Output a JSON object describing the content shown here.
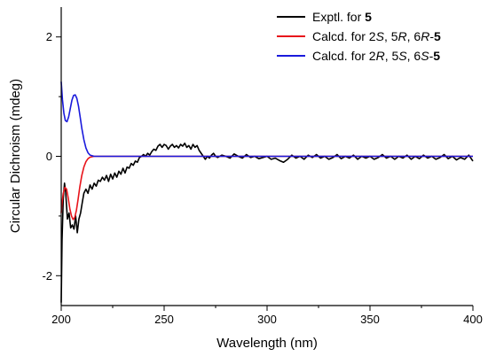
{
  "chart_data": {
    "type": "line",
    "xlabel": "Wavelength (nm)",
    "ylabel": "Circular Dichroism (mdeg)",
    "xlim": [
      200,
      400
    ],
    "ylim": [
      -2.5,
      2.5
    ],
    "xticks": [
      200,
      250,
      300,
      350,
      400
    ],
    "yticks": [
      -2,
      0,
      2
    ],
    "grid": false,
    "legend": "top-right",
    "series": [
      {
        "name": "Exptl. for 5",
        "legend": {
          "prefix": "Exptl. for ",
          "compound": "5"
        },
        "color": "#000000",
        "points": [
          [
            200,
            -2.45
          ],
          [
            200.4,
            -1.4
          ],
          [
            201,
            -0.7
          ],
          [
            201.6,
            -0.45
          ],
          [
            202.2,
            -0.62
          ],
          [
            203,
            -1.05
          ],
          [
            203.8,
            -0.95
          ],
          [
            204.6,
            -1.2
          ],
          [
            205.4,
            -1.15
          ],
          [
            206.2,
            -1.22
          ],
          [
            207,
            -1.0
          ],
          [
            207.8,
            -1.28
          ],
          [
            208.6,
            -1.05
          ],
          [
            209.4,
            -0.95
          ],
          [
            210.2,
            -0.78
          ],
          [
            211,
            -0.62
          ],
          [
            212,
            -0.55
          ],
          [
            213,
            -0.62
          ],
          [
            214,
            -0.48
          ],
          [
            215,
            -0.55
          ],
          [
            216,
            -0.45
          ],
          [
            217,
            -0.5
          ],
          [
            218,
            -0.4
          ],
          [
            219,
            -0.42
          ],
          [
            220,
            -0.35
          ],
          [
            221,
            -0.4
          ],
          [
            222,
            -0.32
          ],
          [
            223,
            -0.42
          ],
          [
            224,
            -0.3
          ],
          [
            225,
            -0.38
          ],
          [
            226,
            -0.28
          ],
          [
            227,
            -0.35
          ],
          [
            228,
            -0.25
          ],
          [
            229,
            -0.3
          ],
          [
            230,
            -0.2
          ],
          [
            231,
            -0.28
          ],
          [
            232,
            -0.18
          ],
          [
            233,
            -0.2
          ],
          [
            234,
            -0.12
          ],
          [
            235,
            -0.15
          ],
          [
            236,
            -0.08
          ],
          [
            237,
            -0.1
          ],
          [
            238,
            -0.02
          ],
          [
            239,
            0.0
          ],
          [
            240,
            0.03
          ],
          [
            241,
            0.0
          ],
          [
            242,
            0.05
          ],
          [
            243,
            0.02
          ],
          [
            244,
            0.08
          ],
          [
            245,
            0.12
          ],
          [
            246,
            0.1
          ],
          [
            247,
            0.17
          ],
          [
            248,
            0.2
          ],
          [
            249,
            0.15
          ],
          [
            250,
            0.2
          ],
          [
            251,
            0.18
          ],
          [
            252,
            0.12
          ],
          [
            253,
            0.17
          ],
          [
            254,
            0.2
          ],
          [
            255,
            0.15
          ],
          [
            256,
            0.18
          ],
          [
            257,
            0.14
          ],
          [
            258,
            0.2
          ],
          [
            259,
            0.17
          ],
          [
            260,
            0.22
          ],
          [
            261,
            0.15
          ],
          [
            262,
            0.18
          ],
          [
            263,
            0.12
          ],
          [
            264,
            0.2
          ],
          [
            265,
            0.15
          ],
          [
            266,
            0.18
          ],
          [
            267,
            0.1
          ],
          [
            268,
            0.05
          ],
          [
            269,
            0.0
          ],
          [
            270,
            -0.05
          ],
          [
            271,
            0.0
          ],
          [
            272,
            -0.03
          ],
          [
            273,
            0.02
          ],
          [
            274,
            0.05
          ],
          [
            275,
            0.0
          ],
          [
            276,
            -0.02
          ],
          [
            278,
            0.02
          ],
          [
            280,
            0.0
          ],
          [
            282,
            -0.03
          ],
          [
            284,
            0.04
          ],
          [
            286,
            0.0
          ],
          [
            288,
            -0.03
          ],
          [
            290,
            0.03
          ],
          [
            292,
            -0.02
          ],
          [
            294,
            0.0
          ],
          [
            296,
            -0.04
          ],
          [
            298,
            -0.02
          ],
          [
            300,
            0.0
          ],
          [
            302,
            -0.05
          ],
          [
            304,
            -0.03
          ],
          [
            306,
            -0.07
          ],
          [
            308,
            -0.1
          ],
          [
            310,
            -0.05
          ],
          [
            312,
            0.02
          ],
          [
            314,
            -0.03
          ],
          [
            316,
            0.0
          ],
          [
            318,
            -0.05
          ],
          [
            320,
            0.02
          ],
          [
            322,
            -0.02
          ],
          [
            324,
            0.03
          ],
          [
            326,
            -0.03
          ],
          [
            328,
            0.0
          ],
          [
            330,
            -0.05
          ],
          [
            332,
            -0.02
          ],
          [
            334,
            0.03
          ],
          [
            336,
            -0.04
          ],
          [
            338,
            0.0
          ],
          [
            340,
            -0.03
          ],
          [
            342,
            0.02
          ],
          [
            344,
            -0.05
          ],
          [
            346,
            0.0
          ],
          [
            348,
            -0.03
          ],
          [
            350,
            0.0
          ],
          [
            352,
            -0.05
          ],
          [
            354,
            -0.02
          ],
          [
            356,
            0.03
          ],
          [
            358,
            -0.03
          ],
          [
            360,
            0.0
          ],
          [
            362,
            -0.05
          ],
          [
            364,
            0.0
          ],
          [
            366,
            -0.03
          ],
          [
            368,
            0.02
          ],
          [
            370,
            -0.05
          ],
          [
            372,
            0.0
          ],
          [
            374,
            -0.04
          ],
          [
            376,
            0.02
          ],
          [
            378,
            -0.03
          ],
          [
            380,
            0.0
          ],
          [
            382,
            -0.05
          ],
          [
            384,
            -0.02
          ],
          [
            386,
            0.03
          ],
          [
            388,
            -0.04
          ],
          [
            390,
            0.0
          ],
          [
            392,
            -0.06
          ],
          [
            394,
            -0.02
          ],
          [
            396,
            -0.05
          ],
          [
            398,
            0.02
          ],
          [
            400,
            -0.08
          ]
        ]
      },
      {
        "name": "Calcd. for 2S, 5R, 6R-5",
        "legend": {
          "prefix": "Calcd. for 2",
          "c1": "S",
          "mid1": ", 5",
          "c2": "R",
          "mid2": ", 6",
          "c3": "R",
          "dash": "-",
          "compound": "5"
        },
        "color": "#e8141b",
        "points": [
          [
            200,
            -0.95
          ],
          [
            200.5,
            -0.75
          ],
          [
            201,
            -0.62
          ],
          [
            201.8,
            -0.52
          ],
          [
            202.6,
            -0.55
          ],
          [
            203.4,
            -0.7
          ],
          [
            204.2,
            -0.88
          ],
          [
            205,
            -1.0
          ],
          [
            205.8,
            -1.06
          ],
          [
            206.6,
            -1.02
          ],
          [
            207.4,
            -0.9
          ],
          [
            208.2,
            -0.72
          ],
          [
            209,
            -0.52
          ],
          [
            210,
            -0.32
          ],
          [
            211,
            -0.18
          ],
          [
            212,
            -0.09
          ],
          [
            213,
            -0.04
          ],
          [
            214,
            -0.015
          ],
          [
            216,
            0.0
          ],
          [
            220,
            0.0
          ],
          [
            250,
            0.0
          ],
          [
            300,
            0.0
          ],
          [
            350,
            0.0
          ],
          [
            400,
            0.0
          ]
        ]
      },
      {
        "name": "Calcd. for 2R, 5S, 6S-5",
        "legend": {
          "prefix": "Calcd. for 2",
          "c1": "R",
          "mid1": ", 5",
          "c2": "S",
          "mid2": ", 6",
          "c3": "S",
          "dash": "-",
          "compound": "5"
        },
        "color": "#1a1adc",
        "points": [
          [
            200,
            1.25
          ],
          [
            200.6,
            0.95
          ],
          [
            201.3,
            0.72
          ],
          [
            202,
            0.6
          ],
          [
            202.8,
            0.58
          ],
          [
            203.6,
            0.66
          ],
          [
            204.4,
            0.8
          ],
          [
            205.2,
            0.94
          ],
          [
            206,
            1.02
          ],
          [
            206.8,
            1.03
          ],
          [
            207.6,
            0.97
          ],
          [
            208.4,
            0.84
          ],
          [
            209.2,
            0.66
          ],
          [
            210,
            0.47
          ],
          [
            211,
            0.28
          ],
          [
            212,
            0.14
          ],
          [
            213,
            0.06
          ],
          [
            214,
            0.02
          ],
          [
            216,
            0.0
          ],
          [
            220,
            0.0
          ],
          [
            250,
            0.0
          ],
          [
            300,
            0.0
          ],
          [
            350,
            0.0
          ],
          [
            400,
            0.0
          ]
        ]
      }
    ]
  }
}
